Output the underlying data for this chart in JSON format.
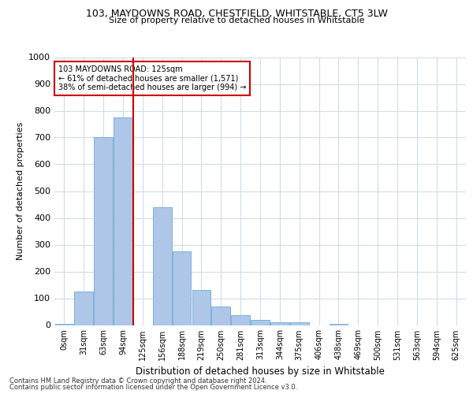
{
  "title1": "103, MAYDOWNS ROAD, CHESTFIELD, WHITSTABLE, CT5 3LW",
  "title2": "Size of property relative to detached houses in Whitstable",
  "xlabel": "Distribution of detached houses by size in Whitstable",
  "ylabel": "Number of detached properties",
  "footer1": "Contains HM Land Registry data © Crown copyright and database right 2024.",
  "footer2": "Contains public sector information licensed under the Open Government Licence v3.0.",
  "bar_labels": [
    "0sqm",
    "31sqm",
    "63sqm",
    "94sqm",
    "125sqm",
    "156sqm",
    "188sqm",
    "219sqm",
    "250sqm",
    "281sqm",
    "313sqm",
    "344sqm",
    "375sqm",
    "406sqm",
    "438sqm",
    "469sqm",
    "500sqm",
    "531sqm",
    "563sqm",
    "594sqm",
    "625sqm"
  ],
  "bar_values": [
    5,
    125,
    700,
    775,
    0,
    440,
    275,
    130,
    70,
    37,
    20,
    10,
    10,
    0,
    5,
    0,
    0,
    0,
    0,
    0,
    0
  ],
  "bar_color": "#aec6e8",
  "bar_edge_color": "#6aabd6",
  "vline_color": "#cc0000",
  "annotation_text": "103 MAYDOWNS ROAD: 125sqm\n← 61% of detached houses are smaller (1,571)\n38% of semi-detached houses are larger (994) →",
  "annotation_box_color": "#ffffff",
  "annotation_box_edge": "#cc0000",
  "ylim": [
    0,
    1000
  ],
  "yticks": [
    0,
    100,
    200,
    300,
    400,
    500,
    600,
    700,
    800,
    900,
    1000
  ],
  "grid_color": "#d0dcea",
  "background_color": "#ffffff",
  "fig_width": 6.0,
  "fig_height": 5.0,
  "dpi": 100
}
